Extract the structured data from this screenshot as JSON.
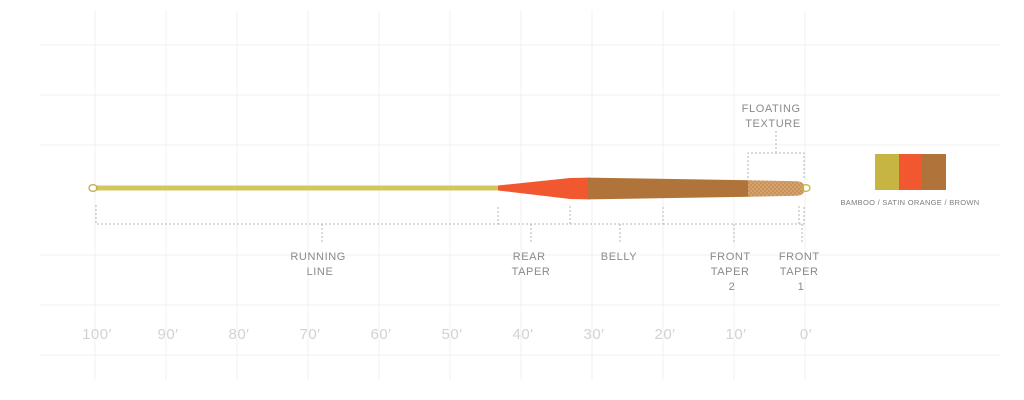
{
  "sections": [
    {
      "id": "running-line",
      "lines": [
        "RUNNING",
        "LINE"
      ]
    },
    {
      "id": "rear-taper",
      "lines": [
        "REAR",
        "TAPER"
      ]
    },
    {
      "id": "belly",
      "lines": [
        "BELLY"
      ]
    },
    {
      "id": "front-taper-2",
      "lines": [
        "FRONT",
        "TAPER",
        "2"
      ]
    },
    {
      "id": "front-taper-1",
      "lines": [
        "FRONT",
        "TAPER",
        "1"
      ]
    }
  ],
  "floating_texture": {
    "lines": [
      "FLOATING",
      "TEXTURE"
    ]
  },
  "scale_ticks": [
    "100′",
    "90′",
    "80′",
    "70′",
    "60′",
    "50′",
    "40′",
    "30′",
    "20′",
    "10′",
    "0′"
  ],
  "colors": {
    "bamboo": "#c6b443",
    "satin_orange": "#f1582f",
    "brown": "#b0733a",
    "running_line": "#d1c75e"
  },
  "swatch": {
    "colors": [
      "#c6b443",
      "#f1582f",
      "#b0733a"
    ],
    "label": "BAMBOO / SATIN ORANGE / BROWN"
  }
}
